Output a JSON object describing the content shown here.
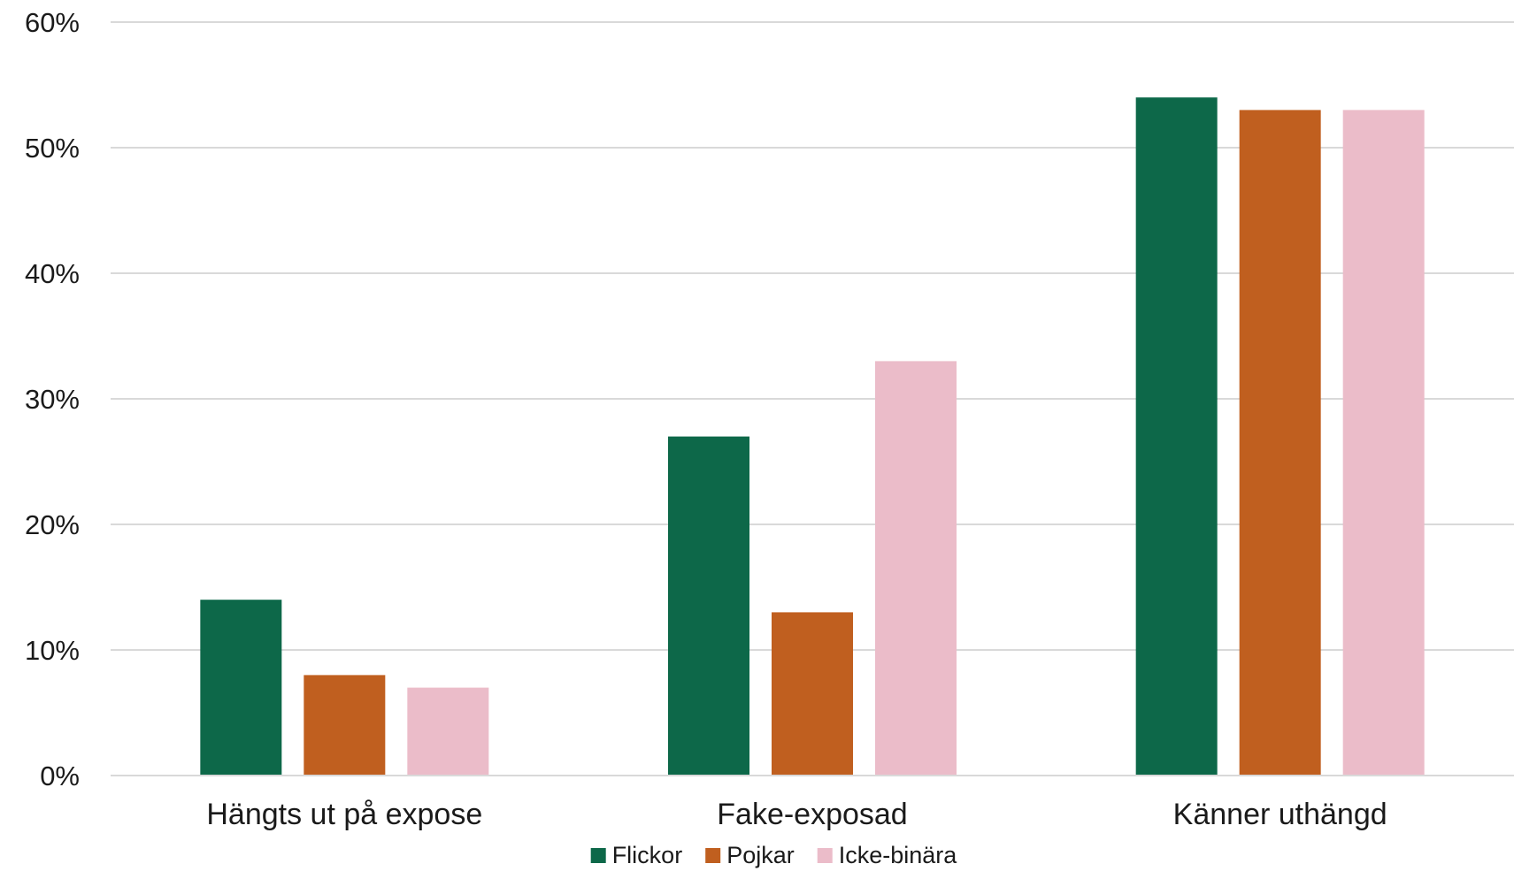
{
  "chart_data": {
    "type": "bar",
    "title": "",
    "xlabel": "",
    "ylabel": "",
    "categories": [
      "Hängts ut på expose",
      "Fake-exposad",
      "Känner uthängd"
    ],
    "series": [
      {
        "name": "Flickor",
        "color": "#0d6849",
        "values": [
          14,
          27,
          54
        ]
      },
      {
        "name": "Pojkar",
        "color": "#c05f1f",
        "values": [
          8,
          13,
          53
        ]
      },
      {
        "name": "Icke-binära",
        "color": "#ebbcc9",
        "values": [
          7,
          33,
          53
        ]
      }
    ],
    "ylim": [
      0,
      60
    ],
    "yticks": [
      0,
      10,
      20,
      30,
      40,
      50,
      60
    ],
    "ytick_labels": [
      "0%",
      "10%",
      "20%",
      "30%",
      "40%",
      "50%",
      "60%"
    ],
    "grid": true,
    "gridline_color": "#d9d9d9",
    "legend_position": "bottom"
  }
}
